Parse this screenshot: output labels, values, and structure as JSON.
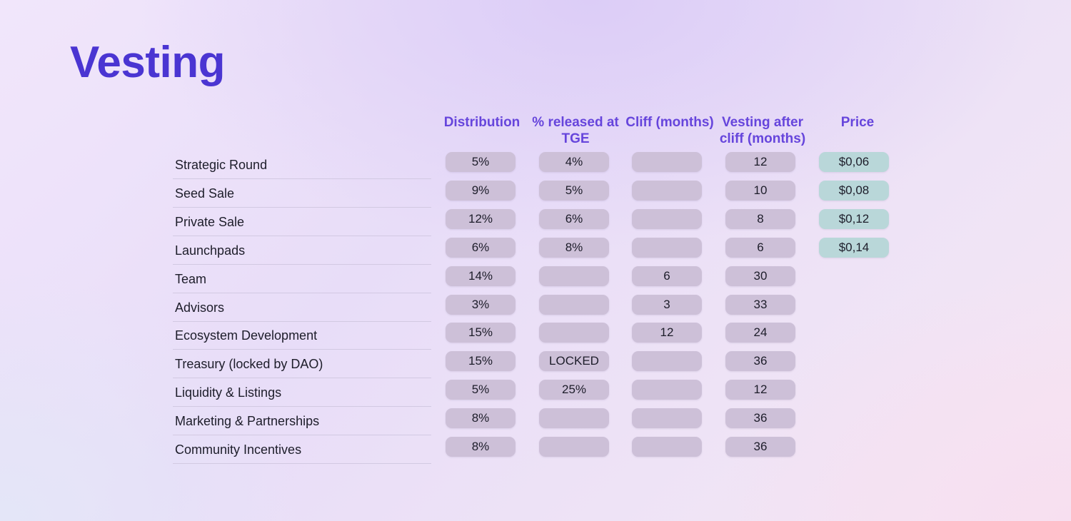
{
  "title": "Vesting",
  "headers": [
    "Distribution",
    "% released at TGE",
    "Cliff (months)",
    "Vesting after cliff (months)",
    "Price"
  ],
  "rows": [
    {
      "label": "Strategic Round",
      "distribution": "5%",
      "tge": "4%",
      "cliff": "",
      "vesting": "12",
      "price": "$0,06"
    },
    {
      "label": "Seed Sale",
      "distribution": "9%",
      "tge": "5%",
      "cliff": "",
      "vesting": "10",
      "price": "$0,08"
    },
    {
      "label": "Private Sale",
      "distribution": "12%",
      "tge": "6%",
      "cliff": "",
      "vesting": "8",
      "price": "$0,12"
    },
    {
      "label": "Launchpads",
      "distribution": "6%",
      "tge": "8%",
      "cliff": "",
      "vesting": "6",
      "price": "$0,14"
    },
    {
      "label": "Team",
      "distribution": "14%",
      "tge": "",
      "cliff": "6",
      "vesting": "30",
      "price": null
    },
    {
      "label": "Advisors",
      "distribution": "3%",
      "tge": "",
      "cliff": "3",
      "vesting": "33",
      "price": null
    },
    {
      "label": "Ecosystem Development",
      "distribution": "15%",
      "tge": "",
      "cliff": "12",
      "vesting": "24",
      "price": null
    },
    {
      "label": "Treasury (locked by DAO)",
      "distribution": "15%",
      "tge": "LOCKED",
      "cliff": "",
      "vesting": "36",
      "price": null
    },
    {
      "label": "Liquidity & Listings",
      "distribution": "5%",
      "tge": "25%",
      "cliff": "",
      "vesting": "12",
      "price": null
    },
    {
      "label": "Marketing & Partnerships",
      "distribution": "8%",
      "tge": "",
      "cliff": "",
      "vesting": "36",
      "price": null
    },
    {
      "label": "Community Incentives",
      "distribution": "8%",
      "tge": "",
      "cliff": "",
      "vesting": "36",
      "price": null
    }
  ],
  "colors": {
    "title": "#4a35d2",
    "header": "#6645dc",
    "cell": "#cdc0d8",
    "price_cell": "#b9d7d9"
  }
}
